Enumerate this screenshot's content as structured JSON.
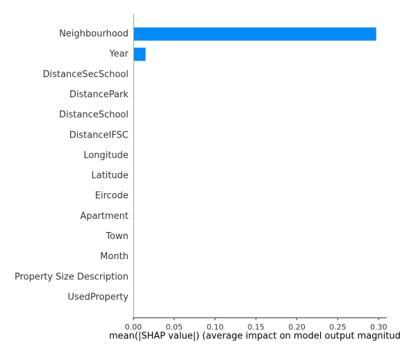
{
  "chart_data": {
    "type": "bar",
    "orientation": "horizontal",
    "categories": [
      "Neighbourhood",
      "Year",
      "DistanceSecSchool",
      "DistancePark",
      "DistanceSchool",
      "DistanceIFSC",
      "Longitude",
      "Latitude",
      "Eircode",
      "Apartment",
      "Town",
      "Month",
      "Property Size Description",
      "UsedProperty"
    ],
    "values": [
      0.297,
      0.015,
      0,
      0,
      0,
      0,
      0,
      0,
      0,
      0,
      0,
      0,
      0,
      0
    ],
    "xlabel": "mean(|SHAP value|) (average impact on model output magnitude)",
    "xlim": [
      0,
      0.31
    ],
    "xticks": [
      0.0,
      0.05,
      0.1,
      0.15,
      0.2,
      0.25,
      0.3
    ],
    "xtick_labels": [
      "0.00",
      "0.05",
      "0.10",
      "0.15",
      "0.20",
      "0.25",
      "0.30"
    ],
    "bar_color": "#008bfb",
    "grid": false
  }
}
